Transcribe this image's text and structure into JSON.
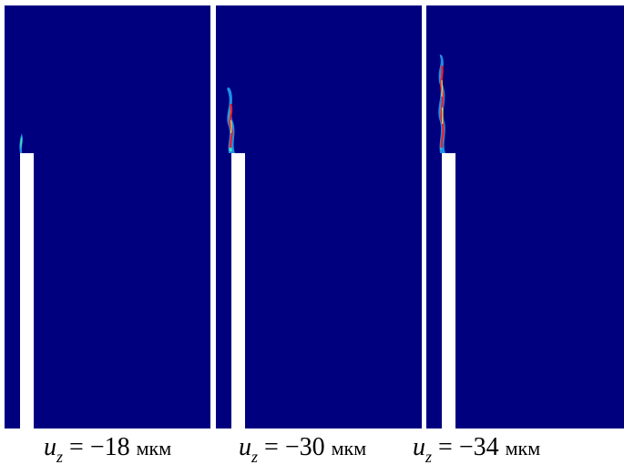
{
  "panels": [
    {
      "caption": {
        "var": "u",
        "sub": "z",
        "eq": " = ",
        "value": "−18",
        "unit": "мкм"
      }
    },
    {
      "caption": {
        "var": "u",
        "sub": "z",
        "eq": " = ",
        "value": "−30",
        "unit": "мкм"
      }
    },
    {
      "caption": {
        "var": "u",
        "sub": "z",
        "eq": " = ",
        "value": "−34",
        "unit": "мкм"
      }
    }
  ],
  "colors": {
    "background": "#00007f",
    "bar": "#ffffff",
    "crack_hot": "#e8202a",
    "crack_warm": "#f5d04a",
    "crack_cool": "#3fe3b8",
    "crack_edge": "#1f8ee8"
  }
}
